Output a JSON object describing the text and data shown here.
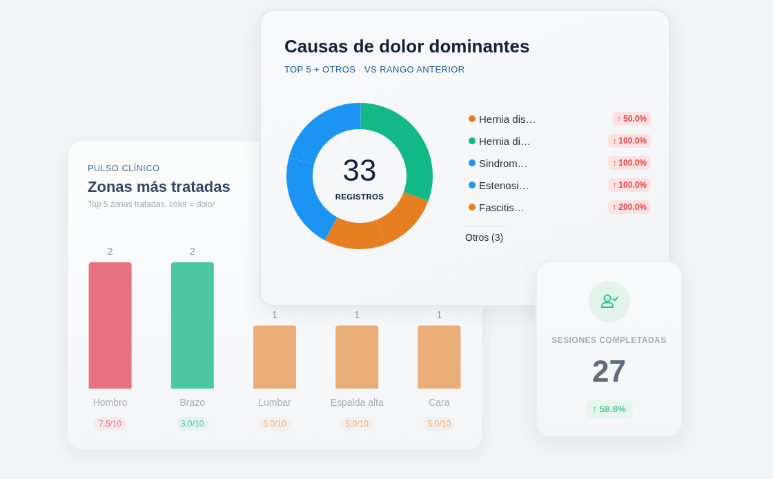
{
  "chart_data": [
    {
      "type": "bar",
      "title": "Zonas más tratadas",
      "subtitle": "Top 5 zonas tratadas. color = dolor",
      "categories": [
        "Hombro",
        "Brazo",
        "Lumbar",
        "Espalda alta",
        "Cara"
      ],
      "values": [
        2,
        2,
        1,
        1,
        1
      ],
      "colors": [
        "#e8717f",
        "#4bc89f",
        "#ebad78",
        "#ebad78",
        "#ebad78"
      ],
      "data_labels": true,
      "tick_labels": "x",
      "annotations": [
        "PULSO CLÍNICO",
        "7.5/10",
        "3.0/10",
        "5.0/10",
        "5.0/10",
        "5.0/10"
      ]
    },
    {
      "type": "donut",
      "title": "Causas de dolor dominantes",
      "subtitle": "TOP 5 + OTROS · VS RANGO ANTERIOR",
      "categories": [
        "Hernia dis…",
        "Hernia di…",
        "Sindrom…",
        "Estenosi…",
        "Fascitis…"
      ],
      "values": [
        13.6,
        30.3,
        21.2,
        21.2,
        13.7
      ],
      "colors": [
        "#e67e22",
        "#12b886",
        "#1c94f4",
        "#1c94f4",
        "#e67e22"
      ],
      "legend": "right",
      "annotations": [
        "33",
        "REGISTROS",
        {
          "text": "↑ 50.0%",
          "x": "Hernia dis…"
        },
        {
          "text": "↑ 100.0%",
          "x": "Hernia di…"
        },
        {
          "text": "↑ 100.0%",
          "x": "Sindrom…"
        },
        {
          "text": "↑ 100.0%",
          "x": "Estenosi…"
        },
        {
          "text": "↑ 200.0%",
          "x": "Fascitis…"
        },
        "Otros (3)"
      ]
    },
    {
      "type": "other",
      "title": "SESIONES COMPLETADAS",
      "annotations": [
        "27",
        "↑ 58.8%"
      ]
    }
  ]
}
